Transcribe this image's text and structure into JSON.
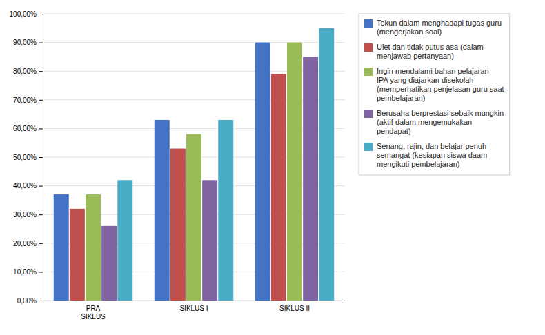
{
  "chart_data": {
    "type": "bar",
    "categories": [
      "PRA\nSIKLUS",
      "SIKLUS I",
      "SIKLUS II"
    ],
    "series": [
      {
        "name": "Tekun dalam menghadapi tugas guru\n(mengerjakan soal)",
        "values": [
          0.37,
          0.63,
          0.9
        ],
        "color": "#4472C4"
      },
      {
        "name": "Ulet dan tidak putus asa (dalam\nmenjawab pertanyaan)",
        "values": [
          0.32,
          0.53,
          0.79
        ],
        "color": "#C0504D"
      },
      {
        "name": "Ingin mendalami bahan pelajaran\nIPA yang diajarkan disekolah\n(memperhatikan penjelasan guru saat\npembelajaran)",
        "values": [
          0.37,
          0.58,
          0.9
        ],
        "color": "#9BBB59"
      },
      {
        "name": "Berusaha berprestasi sebaik mungkin\n(aktif dalam mengemukakan\npendapat)",
        "values": [
          0.26,
          0.42,
          0.85
        ],
        "color": "#8064A2"
      },
      {
        "name": "Senang, rajin, dan belajar penuh\nsemangat (kesiapan siswa daam\nmengikuti pembelajaran)",
        "values": [
          0.42,
          0.63,
          0.95
        ],
        "color": "#4BACC6"
      }
    ],
    "ylim": [
      0.0,
      1.0
    ],
    "yticks": [
      {
        "value": 0.0,
        "label": "0,00%"
      },
      {
        "value": 0.1,
        "label": "10,00%"
      },
      {
        "value": 0.2,
        "label": "20,00%"
      },
      {
        "value": 0.3,
        "label": "30,00%"
      },
      {
        "value": 0.4,
        "label": "40,00%"
      },
      {
        "value": 0.5,
        "label": "50,00%"
      },
      {
        "value": 0.6,
        "label": "60,00%"
      },
      {
        "value": 0.7,
        "label": "70,00%"
      },
      {
        "value": 0.8,
        "label": "80,00%"
      },
      {
        "value": 0.9,
        "label": "90,00%"
      },
      {
        "value": 1.0,
        "label": "100,00%"
      }
    ],
    "grid": true,
    "legend": "right"
  }
}
